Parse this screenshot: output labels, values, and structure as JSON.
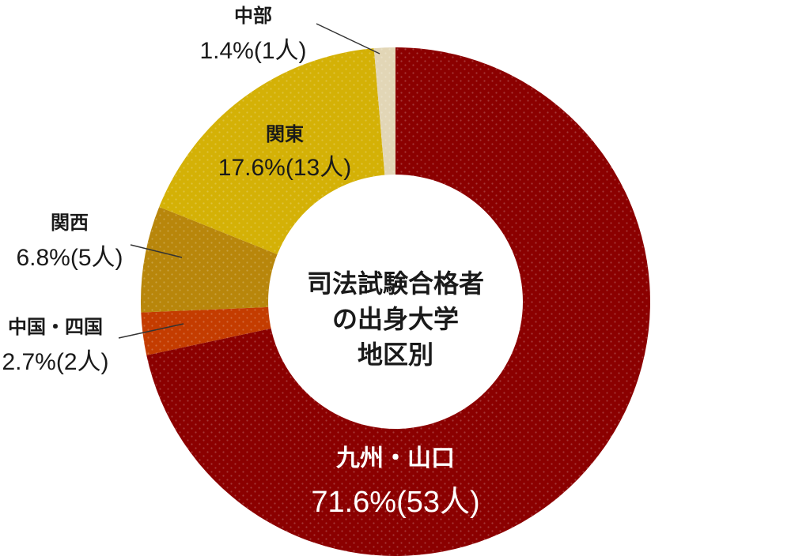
{
  "chart_data": {
    "type": "pie",
    "donut": true,
    "center_text": [
      "司法試験合格者",
      "の出身大学",
      "地区別"
    ],
    "slices": [
      {
        "name": "九州・山口",
        "percent_text": "71.6%",
        "count_text": "(53人)",
        "value": 53,
        "color": "#8b0000"
      },
      {
        "name": "中国・四国",
        "percent_text": "2.7%",
        "count_text": "(2人)",
        "value": 2,
        "color": "#c43c00"
      },
      {
        "name": "関西",
        "percent_text": "6.8%",
        "count_text": "(5人)",
        "value": 5,
        "color": "#b8860b"
      },
      {
        "name": "関東",
        "percent_text": "17.6%",
        "count_text": "(13人)",
        "value": 13,
        "color": "#d4b106"
      },
      {
        "name": "中部",
        "percent_text": "1.4%",
        "count_text": "(1人)",
        "value": 1,
        "color": "#e2d6b6"
      }
    ],
    "total": 74
  }
}
